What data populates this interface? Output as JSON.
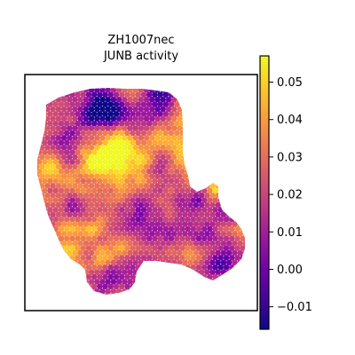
{
  "chart_data": {
    "type": "heatmap",
    "subtype": "spatial-hexbin",
    "title_line1": "ZH1007nec",
    "title_line2": "JUNB activity",
    "colormap": "plasma",
    "colorbar": {
      "vmin": -0.016,
      "vmax": 0.057,
      "ticks": [
        -0.01,
        0.0,
        0.01,
        0.02,
        0.03,
        0.04,
        0.05
      ],
      "tick_labels": [
        "−0.01",
        "0.00",
        "0.01",
        "0.02",
        "0.03",
        "0.04",
        "0.05"
      ]
    },
    "axes_visible": false,
    "grid": false
  }
}
